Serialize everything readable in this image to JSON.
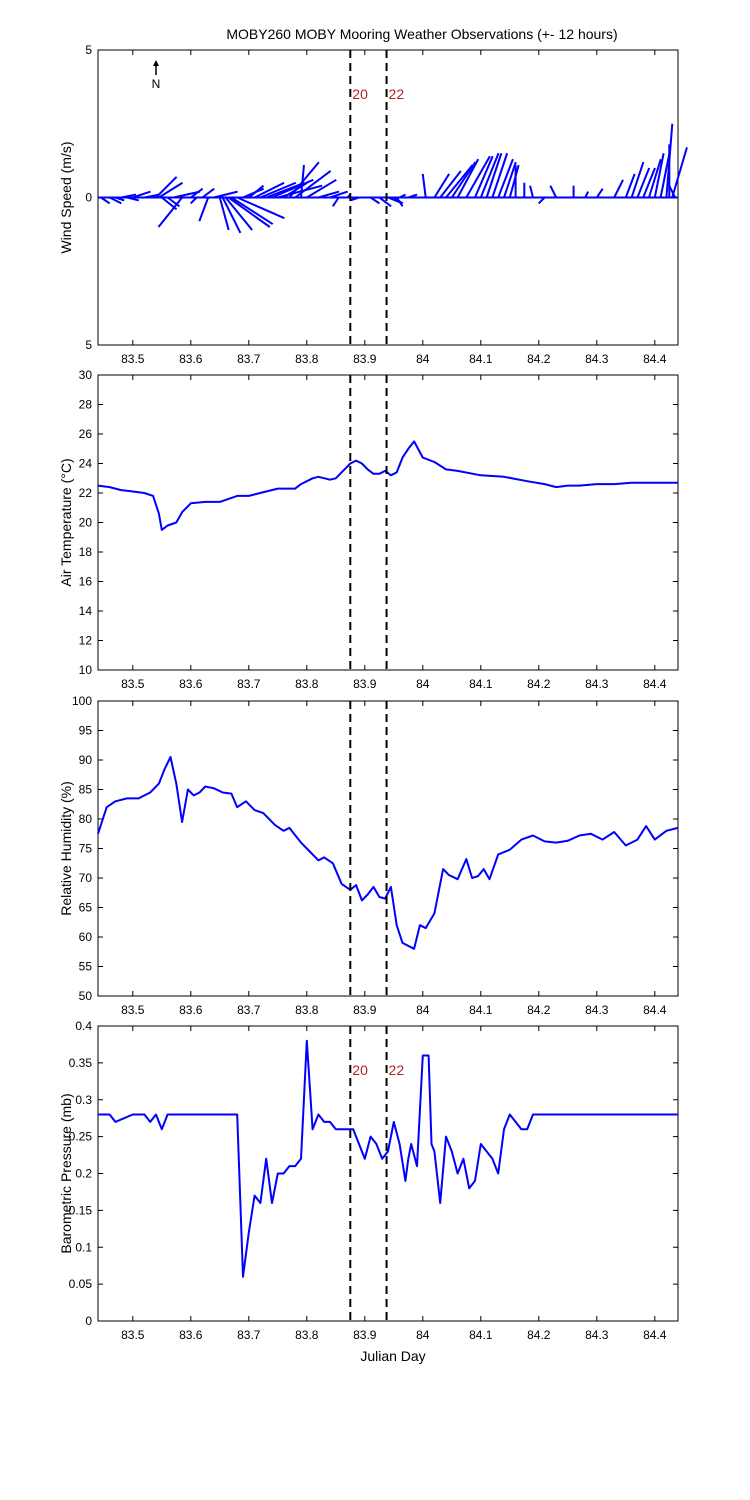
{
  "title": "MOBY260 MOBY Mooring Weather Observations (+- 12 hours)",
  "x_ticks": [
    "83.5",
    "83.6",
    "83.7",
    "83.8",
    "83.9",
    "84",
    "84.1",
    "84.2",
    "84.3",
    "84.4"
  ],
  "xlabel": "Julian Day",
  "markers": {
    "x": [
      83.875,
      83.9375
    ],
    "labels": [
      "20",
      "22"
    ]
  },
  "colors": {
    "series": "#0000ff",
    "marker_line": "#000000",
    "marker_label": "#b22222"
  },
  "north_label": "N",
  "chart_data": [
    {
      "type": "line",
      "subtype": "wind-vector-sticks",
      "ylabel": "Wind Speed (m/s)",
      "y_ticks": [
        "5",
        "0",
        "5"
      ],
      "ylim": [
        -5,
        5
      ],
      "xlim": [
        83.44,
        84.44
      ],
      "sticks": {
        "x": [
          83.445,
          83.46,
          83.47,
          83.48,
          83.49,
          83.5,
          83.52,
          83.54,
          83.545,
          83.55,
          83.56,
          83.57,
          83.585,
          83.6,
          83.61,
          83.62,
          83.63,
          83.64,
          83.65,
          83.655,
          83.66,
          83.665,
          83.67,
          83.68,
          83.69,
          83.7,
          83.71,
          83.72,
          83.73,
          83.74,
          83.75,
          83.76,
          83.77,
          83.78,
          83.79,
          83.8,
          83.82,
          83.84,
          83.855,
          83.87,
          83.89,
          83.91,
          83.925,
          83.94,
          83.95,
          83.955,
          83.96,
          83.975,
          84.005,
          84.02,
          84.03,
          84.04,
          84.05,
          84.06,
          84.075,
          84.09,
          84.1,
          84.11,
          84.12,
          84.13,
          84.14,
          84.15,
          84.16,
          84.175,
          84.19,
          84.21,
          84.23,
          84.26,
          84.28,
          84.3,
          84.33,
          84.35,
          84.36,
          84.37,
          84.38,
          84.39,
          84.4,
          84.41,
          84.42,
          84.425,
          84.43,
          84.435
        ],
        "u": [
          0.3,
          0.4,
          0.3,
          0.5,
          0.4,
          0.6,
          0.5,
          0.7,
          0.8,
          0.5,
          0.4,
          0.9,
          -0.8,
          0.4,
          -0.2,
          0.4,
          -0.3,
          0.8,
          0.3,
          0.6,
          0.9,
          1.4,
          1.4,
          1.6,
          0.7,
          0.5,
          1.0,
          1.2,
          1.3,
          1.4,
          1.5,
          0.8,
          1.0,
          1.2,
          0.1,
          1.0,
          0.7,
          0.6,
          -0.2,
          0.1,
          -0.3,
          0.3,
          0.4,
          0.5,
          0.3,
          0.2,
          0.2,
          0.3,
          -0.1,
          0.5,
          0.7,
          0.9,
          0.8,
          0.7,
          0.8,
          0.6,
          0.6,
          0.5,
          0.5,
          0.5,
          0.4,
          0.3,
          0.0,
          0.0,
          -0.1,
          -0.2,
          -0.2,
          0.0,
          0.1,
          0.2,
          0.3,
          0.3,
          0.4,
          0.4,
          0.4,
          0.4,
          0.3,
          0.3,
          0.2,
          0.0,
          0.5,
          -0.2
        ],
        "v": [
          -0.2,
          -0.2,
          -0.1,
          0.1,
          -0.1,
          0.2,
          0.1,
          0.7,
          0.5,
          -0.4,
          -0.3,
          0.2,
          -1.0,
          0.3,
          -0.2,
          0.3,
          -0.8,
          0.2,
          -1.1,
          -1.2,
          -1.1,
          -1.0,
          -0.9,
          -0.7,
          0.3,
          0.4,
          0.5,
          0.5,
          0.5,
          0.6,
          0.4,
          0.5,
          1.2,
          0.9,
          1.1,
          0.6,
          0.2,
          0.2,
          -0.3,
          0.1,
          -0.1,
          -0.2,
          -0.3,
          -0.2,
          -0.2,
          -0.3,
          0.1,
          0.1,
          0.8,
          0.8,
          0.9,
          1.1,
          1.2,
          1.3,
          1.4,
          1.4,
          1.5,
          1.5,
          1.5,
          1.3,
          1.2,
          1.1,
          1.1,
          0.5,
          0.4,
          -0.2,
          0.4,
          0.4,
          0.2,
          0.3,
          0.6,
          0.8,
          1.2,
          1.0,
          1.0,
          1.3,
          1.5,
          1.5,
          2.5,
          1.8,
          1.7,
          0.4
        ]
      }
    },
    {
      "type": "line",
      "ylabel": "Air Temperature (°C)",
      "y_ticks": [
        "10",
        "12",
        "14",
        "16",
        "18",
        "20",
        "22",
        "24",
        "26",
        "28",
        "30"
      ],
      "ylim": [
        10,
        30
      ],
      "xlim": [
        83.44,
        84.44
      ],
      "x": [
        83.44,
        83.46,
        83.48,
        83.5,
        83.52,
        83.535,
        83.545,
        83.55,
        83.56,
        83.575,
        83.585,
        83.6,
        83.625,
        83.65,
        83.68,
        83.7,
        83.73,
        83.75,
        83.78,
        83.79,
        83.81,
        83.82,
        83.84,
        83.85,
        83.865,
        83.875,
        83.885,
        83.895,
        83.905,
        83.915,
        83.925,
        83.935,
        83.945,
        83.955,
        83.965,
        83.975,
        83.985,
        84.0,
        84.02,
        84.04,
        84.06,
        84.1,
        84.14,
        84.18,
        84.21,
        84.23,
        84.25,
        84.27,
        84.3,
        84.33,
        84.36,
        84.4,
        84.44
      ],
      "y": [
        22.5,
        22.4,
        22.2,
        22.1,
        22.0,
        21.8,
        20.6,
        19.5,
        19.8,
        20.0,
        20.7,
        21.3,
        21.4,
        21.4,
        21.8,
        21.8,
        22.1,
        22.3,
        22.3,
        22.6,
        23.0,
        23.1,
        22.9,
        23.0,
        23.6,
        24.0,
        24.2,
        24.0,
        23.6,
        23.3,
        23.3,
        23.5,
        23.2,
        23.4,
        24.4,
        25.0,
        25.5,
        24.4,
        24.1,
        23.6,
        23.5,
        23.2,
        23.1,
        22.8,
        22.6,
        22.4,
        22.5,
        22.5,
        22.6,
        22.6,
        22.7,
        22.7,
        22.7
      ]
    },
    {
      "type": "line",
      "ylabel": "Relative Humidity (%)",
      "y_ticks": [
        "50",
        "55",
        "60",
        "65",
        "70",
        "75",
        "80",
        "85",
        "90",
        "95",
        "100"
      ],
      "ylim": [
        50,
        100
      ],
      "xlim": [
        83.44,
        84.44
      ],
      "x": [
        83.44,
        83.455,
        83.47,
        83.49,
        83.51,
        83.53,
        83.545,
        83.555,
        83.565,
        83.575,
        83.585,
        83.595,
        83.605,
        83.615,
        83.625,
        83.64,
        83.655,
        83.67,
        83.68,
        83.695,
        83.71,
        83.725,
        83.745,
        83.76,
        83.77,
        83.79,
        83.805,
        83.82,
        83.83,
        83.845,
        83.86,
        83.875,
        83.885,
        83.895,
        83.905,
        83.915,
        83.925,
        83.935,
        83.945,
        83.955,
        83.965,
        83.975,
        83.985,
        83.995,
        84.005,
        84.02,
        84.035,
        84.045,
        84.06,
        84.075,
        84.085,
        84.095,
        84.105,
        84.115,
        84.13,
        84.15,
        84.17,
        84.19,
        84.21,
        84.23,
        84.25,
        84.27,
        84.29,
        84.31,
        84.33,
        84.35,
        84.37,
        84.385,
        84.4,
        84.42,
        84.44
      ],
      "y": [
        77.5,
        82.0,
        83.0,
        83.5,
        83.5,
        84.5,
        86.0,
        88.5,
        90.5,
        86.0,
        79.5,
        85.0,
        84.0,
        84.5,
        85.5,
        85.2,
        84.5,
        84.3,
        82.0,
        83.0,
        81.5,
        81.0,
        79.0,
        78.0,
        78.5,
        76.0,
        74.5,
        73.0,
        73.5,
        72.5,
        69.0,
        68.0,
        68.8,
        66.2,
        67.2,
        68.5,
        66.8,
        66.5,
        68.5,
        62.0,
        59.0,
        58.5,
        58.0,
        62.0,
        61.5,
        64.0,
        71.5,
        70.5,
        69.8,
        73.2,
        70.0,
        70.3,
        71.5,
        69.8,
        74.0,
        74.8,
        76.5,
        77.2,
        76.2,
        76.0,
        76.3,
        77.2,
        77.5,
        76.5,
        77.8,
        75.5,
        76.5,
        78.8,
        76.5,
        78.0,
        78.5
      ]
    },
    {
      "type": "line",
      "ylabel": "Barometric Pressure (mb)",
      "y_ticks": [
        "0",
        "0.05",
        "0.1",
        "0.15",
        "0.2",
        "0.25",
        "0.3",
        "0.35",
        "0.4"
      ],
      "ylim": [
        0,
        0.4
      ],
      "xlim": [
        83.44,
        84.44
      ],
      "x": [
        83.44,
        83.45,
        83.46,
        83.47,
        83.5,
        83.51,
        83.52,
        83.53,
        83.54,
        83.55,
        83.56,
        83.57,
        83.58,
        83.6,
        83.62,
        83.64,
        83.66,
        83.675,
        83.68,
        83.69,
        83.7,
        83.71,
        83.72,
        83.73,
        83.74,
        83.75,
        83.76,
        83.77,
        83.78,
        83.79,
        83.8,
        83.805,
        83.81,
        83.82,
        83.83,
        83.84,
        83.85,
        83.86,
        83.87,
        83.88,
        83.89,
        83.9,
        83.91,
        83.92,
        83.93,
        83.94,
        83.95,
        83.96,
        83.97,
        83.975,
        83.98,
        83.99,
        84.0,
        84.005,
        84.01,
        84.015,
        84.02,
        84.03,
        84.04,
        84.05,
        84.06,
        84.07,
        84.08,
        84.09,
        84.1,
        84.11,
        84.12,
        84.13,
        84.14,
        84.15,
        84.16,
        84.17,
        84.18,
        84.19,
        84.2,
        84.21,
        84.22,
        84.3,
        84.4,
        84.44
      ],
      "y": [
        0.28,
        0.28,
        0.28,
        0.27,
        0.28,
        0.28,
        0.28,
        0.27,
        0.28,
        0.26,
        0.28,
        0.28,
        0.28,
        0.28,
        0.28,
        0.28,
        0.28,
        0.28,
        0.28,
        0.06,
        0.12,
        0.17,
        0.16,
        0.22,
        0.16,
        0.2,
        0.2,
        0.21,
        0.21,
        0.22,
        0.38,
        0.32,
        0.26,
        0.28,
        0.27,
        0.27,
        0.26,
        0.26,
        0.26,
        0.26,
        0.24,
        0.22,
        0.25,
        0.24,
        0.22,
        0.23,
        0.27,
        0.24,
        0.19,
        0.22,
        0.24,
        0.21,
        0.36,
        0.36,
        0.36,
        0.24,
        0.23,
        0.16,
        0.25,
        0.23,
        0.2,
        0.22,
        0.18,
        0.19,
        0.24,
        0.23,
        0.22,
        0.2,
        0.26,
        0.28,
        0.27,
        0.26,
        0.26,
        0.28,
        0.28,
        0.28,
        0.28,
        0.28,
        0.28,
        0.28
      ]
    }
  ]
}
